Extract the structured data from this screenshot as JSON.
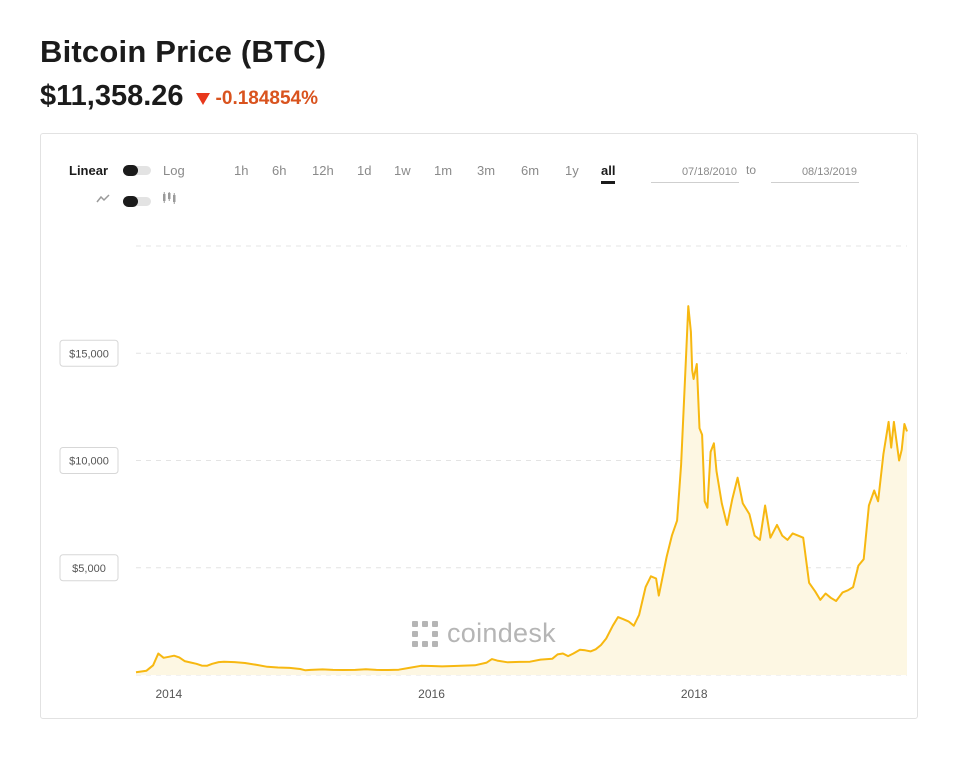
{
  "header": {
    "title": "Bitcoin Price (BTC)",
    "price": "$11,358.26",
    "change": "-0.184854%"
  },
  "toolbar": {
    "scale_linear": "Linear",
    "scale_log": "Log",
    "ranges": [
      "1h",
      "6h",
      "12h",
      "1d",
      "1w",
      "1m",
      "3m",
      "6m",
      "1y",
      "all"
    ],
    "active_range": "all",
    "start_date": "07/18/2010",
    "to_label": "to",
    "end_date": "08/13/2019"
  },
  "watermark": "coindesk",
  "colors": {
    "line": "#f7b811",
    "fill": "#fdf7e3",
    "change": "#d9531e"
  },
  "chart_data": {
    "type": "area",
    "title": "Bitcoin Price (BTC)",
    "xlabel": "",
    "ylabel": "",
    "x_ticks": [
      "2014",
      "2016",
      "2018"
    ],
    "y_ticks": [
      5000,
      10000,
      15000
    ],
    "y_tick_labels": [
      "$5,000",
      "$10,000",
      "$15,000"
    ],
    "xlim": [
      2013.75,
      2019.62
    ],
    "ylim": [
      0,
      20000
    ],
    "grid": true,
    "legend": "none",
    "series": [
      {
        "points": [
          [
            2013.75,
            130
          ],
          [
            2013.83,
            200
          ],
          [
            2013.88,
            450
          ],
          [
            2013.92,
            1000
          ],
          [
            2013.96,
            800
          ],
          [
            2014.0,
            850
          ],
          [
            2014.04,
            900
          ],
          [
            2014.08,
            820
          ],
          [
            2014.12,
            650
          ],
          [
            2014.17,
            580
          ],
          [
            2014.21,
            520
          ],
          [
            2014.25,
            440
          ],
          [
            2014.29,
            430
          ],
          [
            2014.33,
            520
          ],
          [
            2014.38,
            600
          ],
          [
            2014.42,
            620
          ],
          [
            2014.5,
            600
          ],
          [
            2014.58,
            560
          ],
          [
            2014.67,
            470
          ],
          [
            2014.75,
            380
          ],
          [
            2014.83,
            350
          ],
          [
            2014.92,
            330
          ],
          [
            2015.0,
            280
          ],
          [
            2015.04,
            220
          ],
          [
            2015.08,
            240
          ],
          [
            2015.17,
            260
          ],
          [
            2015.25,
            240
          ],
          [
            2015.33,
            235
          ],
          [
            2015.42,
            240
          ],
          [
            2015.5,
            270
          ],
          [
            2015.58,
            240
          ],
          [
            2015.67,
            235
          ],
          [
            2015.75,
            245
          ],
          [
            2015.83,
            330
          ],
          [
            2015.92,
            430
          ],
          [
            2016.0,
            420
          ],
          [
            2016.08,
            400
          ],
          [
            2016.17,
            420
          ],
          [
            2016.25,
            440
          ],
          [
            2016.33,
            450
          ],
          [
            2016.42,
            580
          ],
          [
            2016.46,
            740
          ],
          [
            2016.5,
            670
          ],
          [
            2016.58,
            590
          ],
          [
            2016.67,
            610
          ],
          [
            2016.75,
            620
          ],
          [
            2016.83,
            720
          ],
          [
            2016.92,
            760
          ],
          [
            2016.96,
            960
          ],
          [
            2017.0,
            1000
          ],
          [
            2017.04,
            880
          ],
          [
            2017.08,
            1000
          ],
          [
            2017.13,
            1180
          ],
          [
            2017.17,
            1150
          ],
          [
            2017.21,
            1100
          ],
          [
            2017.25,
            1200
          ],
          [
            2017.29,
            1400
          ],
          [
            2017.33,
            1700
          ],
          [
            2017.38,
            2300
          ],
          [
            2017.42,
            2700
          ],
          [
            2017.46,
            2600
          ],
          [
            2017.5,
            2500
          ],
          [
            2017.54,
            2300
          ],
          [
            2017.58,
            2800
          ],
          [
            2017.63,
            4100
          ],
          [
            2017.67,
            4600
          ],
          [
            2017.71,
            4500
          ],
          [
            2017.73,
            3700
          ],
          [
            2017.75,
            4300
          ],
          [
            2017.79,
            5500
          ],
          [
            2017.83,
            6500
          ],
          [
            2017.87,
            7200
          ],
          [
            2017.9,
            9800
          ],
          [
            2017.935,
            14500
          ],
          [
            2017.955,
            17200
          ],
          [
            2017.975,
            16000
          ],
          [
            2017.985,
            14200
          ],
          [
            2017.995,
            13800
          ],
          [
            2018.02,
            14500
          ],
          [
            2018.04,
            11500
          ],
          [
            2018.06,
            11200
          ],
          [
            2018.08,
            8100
          ],
          [
            2018.1,
            7800
          ],
          [
            2018.125,
            10400
          ],
          [
            2018.15,
            10800
          ],
          [
            2018.17,
            9500
          ],
          [
            2018.21,
            8000
          ],
          [
            2018.25,
            7000
          ],
          [
            2018.29,
            8200
          ],
          [
            2018.33,
            9200
          ],
          [
            2018.37,
            8000
          ],
          [
            2018.42,
            7500
          ],
          [
            2018.46,
            6500
          ],
          [
            2018.5,
            6300
          ],
          [
            2018.54,
            7900
          ],
          [
            2018.58,
            6400
          ],
          [
            2018.63,
            7000
          ],
          [
            2018.67,
            6500
          ],
          [
            2018.71,
            6300
          ],
          [
            2018.75,
            6600
          ],
          [
            2018.79,
            6500
          ],
          [
            2018.83,
            6400
          ],
          [
            2018.875,
            4300
          ],
          [
            2018.92,
            3900
          ],
          [
            2018.96,
            3500
          ],
          [
            2019.0,
            3800
          ],
          [
            2019.04,
            3600
          ],
          [
            2019.08,
            3450
          ],
          [
            2019.13,
            3850
          ],
          [
            2019.17,
            3950
          ],
          [
            2019.21,
            4100
          ],
          [
            2019.25,
            5100
          ],
          [
            2019.29,
            5400
          ],
          [
            2019.33,
            7900
          ],
          [
            2019.37,
            8600
          ],
          [
            2019.4,
            8100
          ],
          [
            2019.44,
            10300
          ],
          [
            2019.48,
            11800
          ],
          [
            2019.5,
            10600
          ],
          [
            2019.52,
            11800
          ],
          [
            2019.56,
            10000
          ],
          [
            2019.58,
            10500
          ],
          [
            2019.6,
            11700
          ],
          [
            2019.62,
            11358
          ]
        ]
      }
    ]
  }
}
